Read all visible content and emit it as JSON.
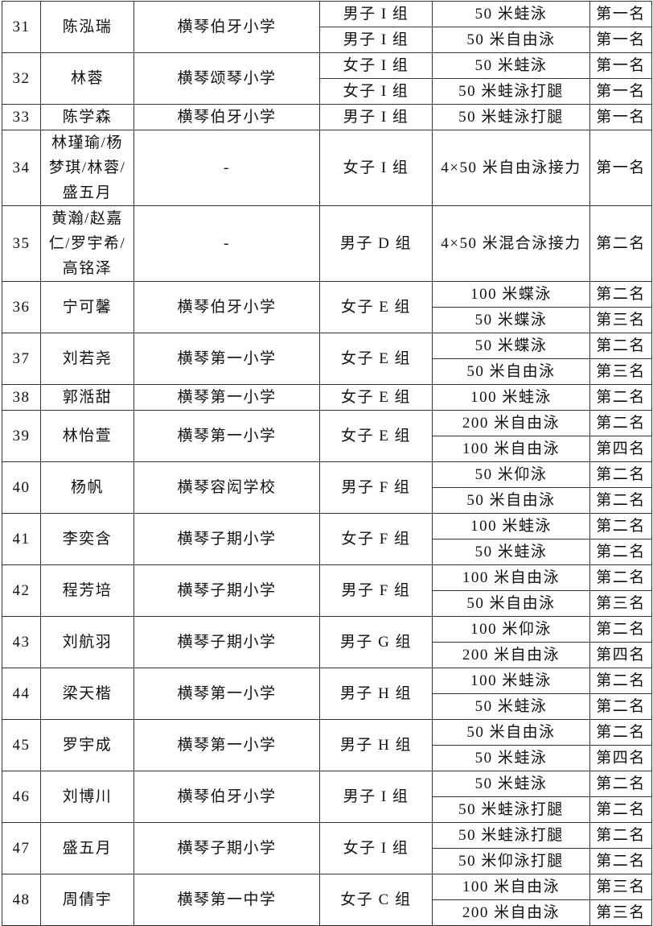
{
  "rows": [
    {
      "no": "31",
      "name": "陈泓瑞",
      "school": "横琴伯牙小学",
      "entries": [
        {
          "group": "男子 I 组",
          "event": "50 米蛙泳",
          "rank": "第一名"
        },
        {
          "group": "男子 I 组",
          "event": "50 米自由泳",
          "rank": "第一名"
        }
      ]
    },
    {
      "no": "32",
      "name": "林蓉",
      "school": "横琴颂琴小学",
      "entries": [
        {
          "group": "女子 I 组",
          "event": "50 米蛙泳",
          "rank": "第一名"
        },
        {
          "group": "女子 I 组",
          "event": "50 米蛙泳打腿",
          "rank": "第一名"
        }
      ]
    },
    {
      "no": "33",
      "name": "陈学森",
      "school": "横琴伯牙小学",
      "entries": [
        {
          "group": "男子 I 组",
          "event": "50 米蛙泳打腿",
          "rank": "第一名"
        }
      ]
    },
    {
      "no": "34",
      "name": "林瑾瑜/杨梦琪/林蓉/盛五月",
      "school": "-",
      "entries": [
        {
          "group": "女子 I 组",
          "event": "4×50 米自由泳接力",
          "rank": "第一名"
        }
      ]
    },
    {
      "no": "35",
      "name": "黄瀚/赵嘉仁/罗宇希/高铭泽",
      "school": "-",
      "entries": [
        {
          "group": "男子 D 组",
          "event": "4×50 米混合泳接力",
          "rank": "第二名"
        }
      ]
    },
    {
      "no": "36",
      "name": "宁可馨",
      "school": "横琴伯牙小学",
      "group": "女子 E 组",
      "entries": [
        {
          "event": "100 米蝶泳",
          "rank": "第二名"
        },
        {
          "event": "50 米蝶泳",
          "rank": "第三名"
        }
      ]
    },
    {
      "no": "37",
      "name": "刘若尧",
      "school": "横琴第一小学",
      "group": "女子 E 组",
      "entries": [
        {
          "event": "50 米蝶泳",
          "rank": "第二名"
        },
        {
          "event": "50 米自由泳",
          "rank": "第三名"
        }
      ]
    },
    {
      "no": "38",
      "name": "郭湉甜",
      "school": "横琴第一小学",
      "group": "女子 E 组",
      "entries": [
        {
          "event": "100 米蛙泳",
          "rank": "第二名"
        }
      ]
    },
    {
      "no": "39",
      "name": "林怡萱",
      "school": "横琴第一小学",
      "group": "女子 E 组",
      "entries": [
        {
          "event": "200 米自由泳",
          "rank": "第二名"
        },
        {
          "event": "100 米自由泳",
          "rank": "第四名"
        }
      ]
    },
    {
      "no": "40",
      "name": "杨帆",
      "school": "横琴容闳学校",
      "group": "男子 F 组",
      "entries": [
        {
          "event": "50 米仰泳",
          "rank": "第二名"
        },
        {
          "event": "50 米自由泳",
          "rank": "第二名"
        }
      ]
    },
    {
      "no": "41",
      "name": "李奕含",
      "school": "横琴子期小学",
      "group": "女子 F 组",
      "entries": [
        {
          "event": "100 米蛙泳",
          "rank": "第二名"
        },
        {
          "event": "50 米蛙泳",
          "rank": "第二名"
        }
      ]
    },
    {
      "no": "42",
      "name": "程芳培",
      "school": "横琴子期小学",
      "group": "男子 F 组",
      "entries": [
        {
          "event": "100 米自由泳",
          "rank": "第二名"
        },
        {
          "event": "50 米自由泳",
          "rank": "第三名"
        }
      ]
    },
    {
      "no": "43",
      "name": "刘航羽",
      "school": "横琴子期小学",
      "group": "男子 G 组",
      "entries": [
        {
          "event": "100 米仰泳",
          "rank": "第二名"
        },
        {
          "event": "200 米自由泳",
          "rank": "第四名"
        }
      ]
    },
    {
      "no": "44",
      "name": "梁天楷",
      "school": "横琴第一小学",
      "group": "男子 H 组",
      "entries": [
        {
          "event": "100 米蛙泳",
          "rank": "第二名"
        },
        {
          "event": "50 米蛙泳",
          "rank": "第二名"
        }
      ]
    },
    {
      "no": "45",
      "name": "罗宇成",
      "school": "横琴第一小学",
      "group": "男子 H 组",
      "entries": [
        {
          "event": "50 米自由泳",
          "rank": "第二名"
        },
        {
          "event": "50 米蛙泳",
          "rank": "第四名"
        }
      ]
    },
    {
      "no": "46",
      "name": "刘博川",
      "school": "横琴伯牙小学",
      "group": "男子 I 组",
      "entries": [
        {
          "event": "50 米蛙泳",
          "rank": "第二名"
        },
        {
          "event": "50 米蛙泳打腿",
          "rank": "第二名"
        }
      ]
    },
    {
      "no": "47",
      "name": "盛五月",
      "school": "横琴子期小学",
      "group": "女子 I 组",
      "entries": [
        {
          "event": "50 米蛙泳打腿",
          "rank": "第二名"
        },
        {
          "event": "50 米仰泳打腿",
          "rank": "第二名"
        }
      ]
    },
    {
      "no": "48",
      "name": "周倩宇",
      "school": "横琴第一中学",
      "group": "女子 C 组",
      "entries": [
        {
          "event": "100 米自由泳",
          "rank": "第三名"
        },
        {
          "event": "200 米自由泳",
          "rank": "第三名"
        }
      ]
    }
  ]
}
